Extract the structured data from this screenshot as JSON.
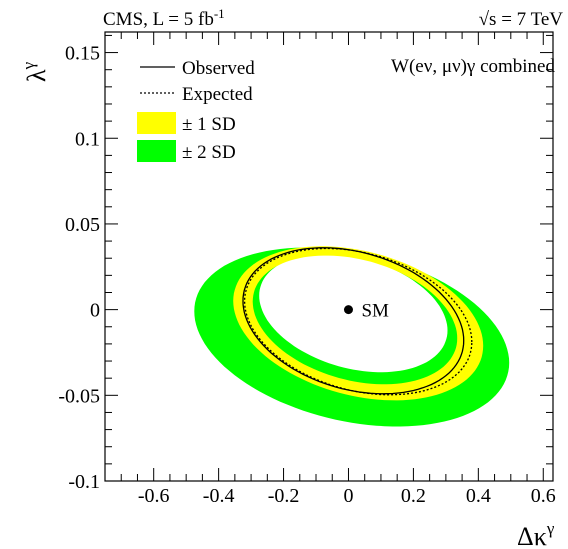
{
  "header": {
    "left_main": "CMS, L = 5 fb",
    "left_sup": "-1",
    "right_sqrt": "√",
    "right_rest": "s = 7 TeV"
  },
  "chart_data": {
    "type": "contour",
    "title": "",
    "annotation": "W(eν, μν)γ combined",
    "xlabel": "Δκ",
    "xlabel_sup": "γ",
    "ylabel": "λ",
    "ylabel_sup": "γ",
    "xlim": [
      -0.75,
      0.63
    ],
    "ylim": [
      -0.1,
      0.162
    ],
    "x_ticks": [
      {
        "value": -0.6,
        "label": "-0.6"
      },
      {
        "value": -0.4,
        "label": "-0.4"
      },
      {
        "value": -0.2,
        "label": "-0.2"
      },
      {
        "value": 0,
        "label": "0"
      },
      {
        "value": 0.2,
        "label": "0.2"
      },
      {
        "value": 0.4,
        "label": "0.4"
      },
      {
        "value": 0.6,
        "label": "0.6"
      }
    ],
    "y_ticks": [
      {
        "value": -0.1,
        "label": "-0.1"
      },
      {
        "value": -0.05,
        "label": "-0.05"
      },
      {
        "value": 0,
        "label": "0"
      },
      {
        "value": 0.05,
        "label": "0.05"
      },
      {
        "value": 0.1,
        "label": "0.1"
      },
      {
        "value": 0.15,
        "label": "0.15"
      }
    ],
    "legend": {
      "placement": "top-left",
      "entries": [
        {
          "label": "Observed",
          "style": "solid-line"
        },
        {
          "label": "Expected",
          "style": "dotted-line"
        },
        {
          "label": "± 1 SD",
          "style": "band",
          "color": "#ffff00"
        },
        {
          "label": "± 2 SD",
          "style": "band",
          "color": "#00ff00"
        }
      ]
    },
    "series": [
      {
        "name": "± 2 SD",
        "kind": "band",
        "color": "#00ff00",
        "outer": {
          "cx": 0.01,
          "cy": -0.016,
          "rx": 0.485,
          "ry": 0.05,
          "tilt_per_x": -0.031
        },
        "inner": {
          "cx": 0.015,
          "cy": -0.002,
          "rx": 0.29,
          "ry": 0.033,
          "tilt_per_x": -0.035
        }
      },
      {
        "name": "± 1 SD",
        "kind": "band",
        "color": "#ffff00",
        "outer": {
          "cx": 0.03,
          "cy": -0.008,
          "rx": 0.385,
          "ry": 0.043,
          "tilt_per_x": -0.034
        },
        "inner": {
          "cx": 0.02,
          "cy": -0.006,
          "rx": 0.315,
          "ry": 0.036,
          "tilt_per_x": -0.034
        }
      },
      {
        "name": "Expected",
        "kind": "contour",
        "dash": "dotted",
        "shape": {
          "cx": 0.03,
          "cy": -0.007,
          "rx": 0.35,
          "ry": 0.041,
          "tilt_per_x": -0.034
        }
      },
      {
        "name": "Observed",
        "kind": "contour",
        "dash": "solid",
        "shape": {
          "cx": 0.015,
          "cy": -0.0065,
          "rx": 0.34,
          "ry": 0.041,
          "tilt_per_x": -0.034
        }
      }
    ],
    "points": [
      {
        "label": "SM",
        "x": 0,
        "y": 0
      }
    ]
  }
}
